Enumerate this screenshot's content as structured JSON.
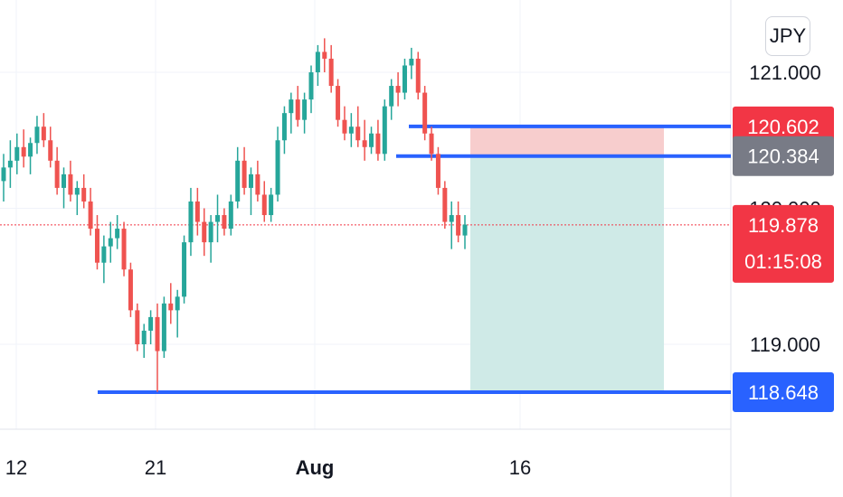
{
  "currency_badge": "JPY",
  "chart_data": {
    "type": "candlestick",
    "instrument_currency": "JPY",
    "y_ticks": [
      121.0,
      120.0,
      119.0
    ],
    "y_tick_labels": [
      "121.000",
      "120.000",
      "119.000"
    ],
    "ylim": [
      118.3,
      121.35
    ],
    "x_tick_labels": [
      "12",
      "21",
      "Aug",
      "16"
    ],
    "countdown": "01:15:08",
    "last_price": 119.878,
    "last_price_label": "119.878",
    "horizontal_levels": [
      {
        "value": 120.602,
        "label": "120.602",
        "color": "#2962ff",
        "tag_color": "#f23645"
      },
      {
        "value": 120.384,
        "label": "120.384",
        "color": "#2962ff",
        "tag_color": "#787b86"
      },
      {
        "value": 118.648,
        "label": "118.648",
        "color": "#2962ff",
        "tag_color": "#2962ff"
      }
    ],
    "position": {
      "type": "short",
      "entry": 120.384,
      "stop": 120.602,
      "target": 118.648,
      "stop_zone_color": "#f7cdcd",
      "target_zone_color": "#cfeae7"
    },
    "colors": {
      "up": "#26a69a",
      "down": "#ef5350",
      "grid": "#f0f3fa",
      "last_price_line": "#f23645"
    },
    "grid": true,
    "candles": [
      [
        120.2,
        120.4,
        120.05,
        120.3
      ],
      [
        120.3,
        120.5,
        120.15,
        120.35
      ],
      [
        120.35,
        120.55,
        120.25,
        120.45
      ],
      [
        120.45,
        120.58,
        120.3,
        120.38
      ],
      [
        120.38,
        120.52,
        120.25,
        120.48
      ],
      [
        120.48,
        120.68,
        120.4,
        120.6
      ],
      [
        120.6,
        120.7,
        120.45,
        120.5
      ],
      [
        120.5,
        120.6,
        120.3,
        120.35
      ],
      [
        120.35,
        120.45,
        120.1,
        120.15
      ],
      [
        120.15,
        120.3,
        120.0,
        120.25
      ],
      [
        120.25,
        120.35,
        120.05,
        120.1
      ],
      [
        120.1,
        120.2,
        119.95,
        120.15
      ],
      [
        120.15,
        120.25,
        120.0,
        120.05
      ],
      [
        120.05,
        120.15,
        119.8,
        119.85
      ],
      [
        119.85,
        119.95,
        119.55,
        119.6
      ],
      [
        119.6,
        119.8,
        119.45,
        119.72
      ],
      [
        119.72,
        119.9,
        119.6,
        119.78
      ],
      [
        119.78,
        119.95,
        119.7,
        119.85
      ],
      [
        119.85,
        119.9,
        119.5,
        119.55
      ],
      [
        119.55,
        119.6,
        119.2,
        119.25
      ],
      [
        119.25,
        119.3,
        118.95,
        119.0
      ],
      [
        119.0,
        119.15,
        118.9,
        119.1
      ],
      [
        119.1,
        119.25,
        119.0,
        119.2
      ],
      [
        119.2,
        119.3,
        118.65,
        118.95
      ],
      [
        118.95,
        119.35,
        118.9,
        119.3
      ],
      [
        119.3,
        119.45,
        119.15,
        119.25
      ],
      [
        119.25,
        119.4,
        119.05,
        119.35
      ],
      [
        119.35,
        119.8,
        119.3,
        119.75
      ],
      [
        119.75,
        120.15,
        119.65,
        120.05
      ],
      [
        120.05,
        120.15,
        119.8,
        119.9
      ],
      [
        119.9,
        120.0,
        119.65,
        119.75
      ],
      [
        119.75,
        119.95,
        119.6,
        119.9
      ],
      [
        119.9,
        120.1,
        119.75,
        119.95
      ],
      [
        119.95,
        120.0,
        119.8,
        119.85
      ],
      [
        119.85,
        120.1,
        119.8,
        120.05
      ],
      [
        120.05,
        120.45,
        120.0,
        120.35
      ],
      [
        120.35,
        120.45,
        120.1,
        120.15
      ],
      [
        120.15,
        120.3,
        119.95,
        120.25
      ],
      [
        120.25,
        120.35,
        120.05,
        120.1
      ],
      [
        120.1,
        120.2,
        119.9,
        119.95
      ],
      [
        119.95,
        120.15,
        119.9,
        120.1
      ],
      [
        120.1,
        120.6,
        120.05,
        120.5
      ],
      [
        120.5,
        120.75,
        120.4,
        120.7
      ],
      [
        120.7,
        120.85,
        120.55,
        120.8
      ],
      [
        120.8,
        120.9,
        120.6,
        120.65
      ],
      [
        120.65,
        120.85,
        120.55,
        120.8
      ],
      [
        120.8,
        121.05,
        120.7,
        121.0
      ],
      [
        121.0,
        121.2,
        120.9,
        121.15
      ],
      [
        121.15,
        121.25,
        121.0,
        121.1
      ],
      [
        121.1,
        121.2,
        120.85,
        120.9
      ],
      [
        120.9,
        120.95,
        120.6,
        120.65
      ],
      [
        120.65,
        120.75,
        120.5,
        120.55
      ],
      [
        120.55,
        120.7,
        120.45,
        120.6
      ],
      [
        120.6,
        120.75,
        120.45,
        120.5
      ],
      [
        120.5,
        120.65,
        120.35,
        120.45
      ],
      [
        120.45,
        120.6,
        120.4,
        120.55
      ],
      [
        120.55,
        120.65,
        120.35,
        120.4
      ],
      [
        120.4,
        120.8,
        120.35,
        120.75
      ],
      [
        120.75,
        120.95,
        120.65,
        120.9
      ],
      [
        120.9,
        121.0,
        120.75,
        120.85
      ],
      [
        120.85,
        121.1,
        120.8,
        121.05
      ],
      [
        121.05,
        121.18,
        120.95,
        121.1
      ],
      [
        121.1,
        121.15,
        120.8,
        120.85
      ],
      [
        120.85,
        120.9,
        120.5,
        120.55
      ],
      [
        120.55,
        120.6,
        120.35,
        120.4
      ],
      [
        120.4,
        120.45,
        120.1,
        120.15
      ],
      [
        120.15,
        120.2,
        119.85,
        119.9
      ],
      [
        119.9,
        120.05,
        119.7,
        119.95
      ],
      [
        119.95,
        120.05,
        119.75,
        119.8
      ],
      [
        119.8,
        119.95,
        119.7,
        119.88
      ]
    ]
  }
}
